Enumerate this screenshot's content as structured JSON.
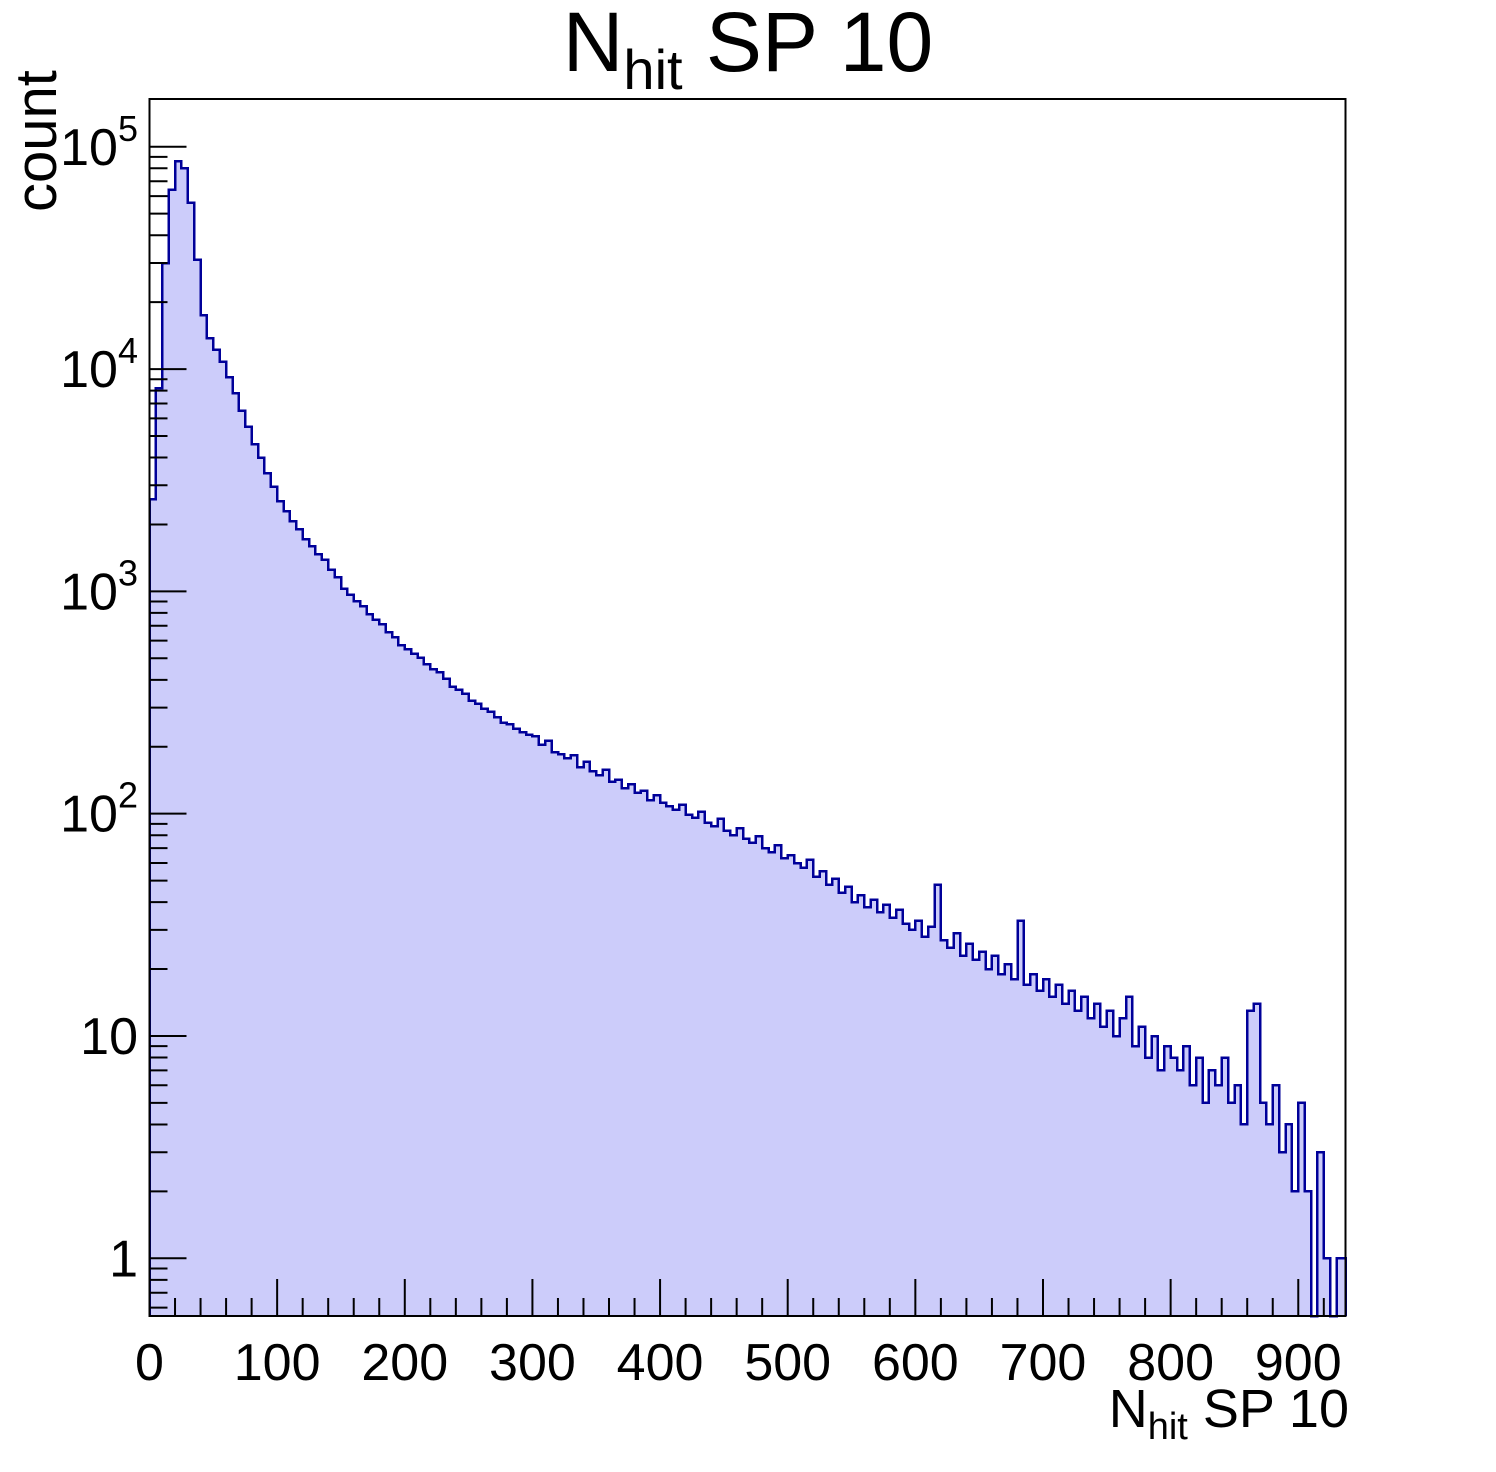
{
  "title": {
    "main": "N",
    "sub": "hit",
    "rest": " SP 10"
  },
  "y_axis": {
    "label": "count"
  },
  "x_axis": {
    "title_main": "N",
    "title_sub": "hit",
    "title_rest": " SP 10"
  },
  "colors": {
    "histogram_fill": "#ccccfa",
    "histogram_line": "#000099",
    "frame": "#000000",
    "text": "#000000",
    "background": "#ffffff"
  },
  "chart_data": {
    "type": "bar",
    "subtype": "histogram-step-filled",
    "title": "N_hit SP 10",
    "xlabel": "N_hit SP 10",
    "ylabel": "count",
    "yscale": "log",
    "grid": false,
    "legend": false,
    "xlim": [
      0,
      937
    ],
    "ylim": [
      0.55,
      164000
    ],
    "x_start": 0,
    "bin_width": 5,
    "counts": [
      2600,
      8200,
      30000,
      64000,
      86000,
      80000,
      56000,
      31000,
      17500,
      13800,
      12200,
      10800,
      9200,
      7800,
      6500,
      5500,
      4600,
      4000,
      3400,
      2950,
      2550,
      2300,
      2070,
      1900,
      1720,
      1600,
      1470,
      1390,
      1250,
      1160,
      1030,
      965,
      905,
      858,
      790,
      745,
      712,
      655,
      622,
      574,
      548,
      525,
      503,
      471,
      446,
      433,
      404,
      373,
      362,
      347,
      323,
      312,
      297,
      287,
      272,
      257,
      252,
      241,
      232,
      227,
      223,
      204,
      213,
      189,
      185,
      178,
      183,
      162,
      171,
      155,
      149,
      158,
      139,
      142,
      130,
      136,
      124,
      127,
      115,
      121,
      112,
      108,
      104,
      110,
      99,
      96,
      102,
      91,
      88,
      95,
      84,
      80,
      86,
      77,
      74,
      79,
      70,
      67,
      72,
      63,
      65,
      60,
      57,
      62,
      52,
      55,
      48,
      51,
      44,
      47,
      40,
      43,
      38,
      41,
      36,
      39,
      34,
      37,
      32,
      30,
      33,
      28,
      31,
      48,
      27,
      25,
      29,
      23,
      26,
      22,
      24,
      20,
      23,
      19,
      21,
      18,
      33,
      17,
      19,
      16,
      18,
      15,
      17,
      14,
      16,
      13,
      15,
      12,
      14,
      11,
      13,
      10,
      12,
      15,
      9,
      11,
      8,
      10,
      7,
      9,
      8,
      7,
      9,
      6,
      8,
      5,
      7,
      6,
      8,
      5,
      6,
      4,
      13,
      14,
      5,
      4,
      6,
      3,
      4,
      2,
      5,
      2,
      0,
      3,
      1,
      0,
      1,
      1
    ],
    "x_ticks": [
      {
        "v": 0,
        "label": "0"
      },
      {
        "v": 100,
        "label": "100"
      },
      {
        "v": 200,
        "label": "200"
      },
      {
        "v": 300,
        "label": "300"
      },
      {
        "v": 400,
        "label": "400"
      },
      {
        "v": 500,
        "label": "500"
      },
      {
        "v": 600,
        "label": "600"
      },
      {
        "v": 700,
        "label": "700"
      },
      {
        "v": 800,
        "label": "800"
      },
      {
        "v": 900,
        "label": "900"
      }
    ],
    "x_minor_step": 20,
    "y_ticks": [
      {
        "v": 1,
        "label": "1"
      },
      {
        "v": 10,
        "label": "10"
      },
      {
        "v": 100,
        "label": "10",
        "exp": "2"
      },
      {
        "v": 1000,
        "label": "10",
        "exp": "3"
      },
      {
        "v": 10000,
        "label": "10",
        "exp": "4"
      },
      {
        "v": 100000,
        "label": "10",
        "exp": "5"
      }
    ]
  }
}
